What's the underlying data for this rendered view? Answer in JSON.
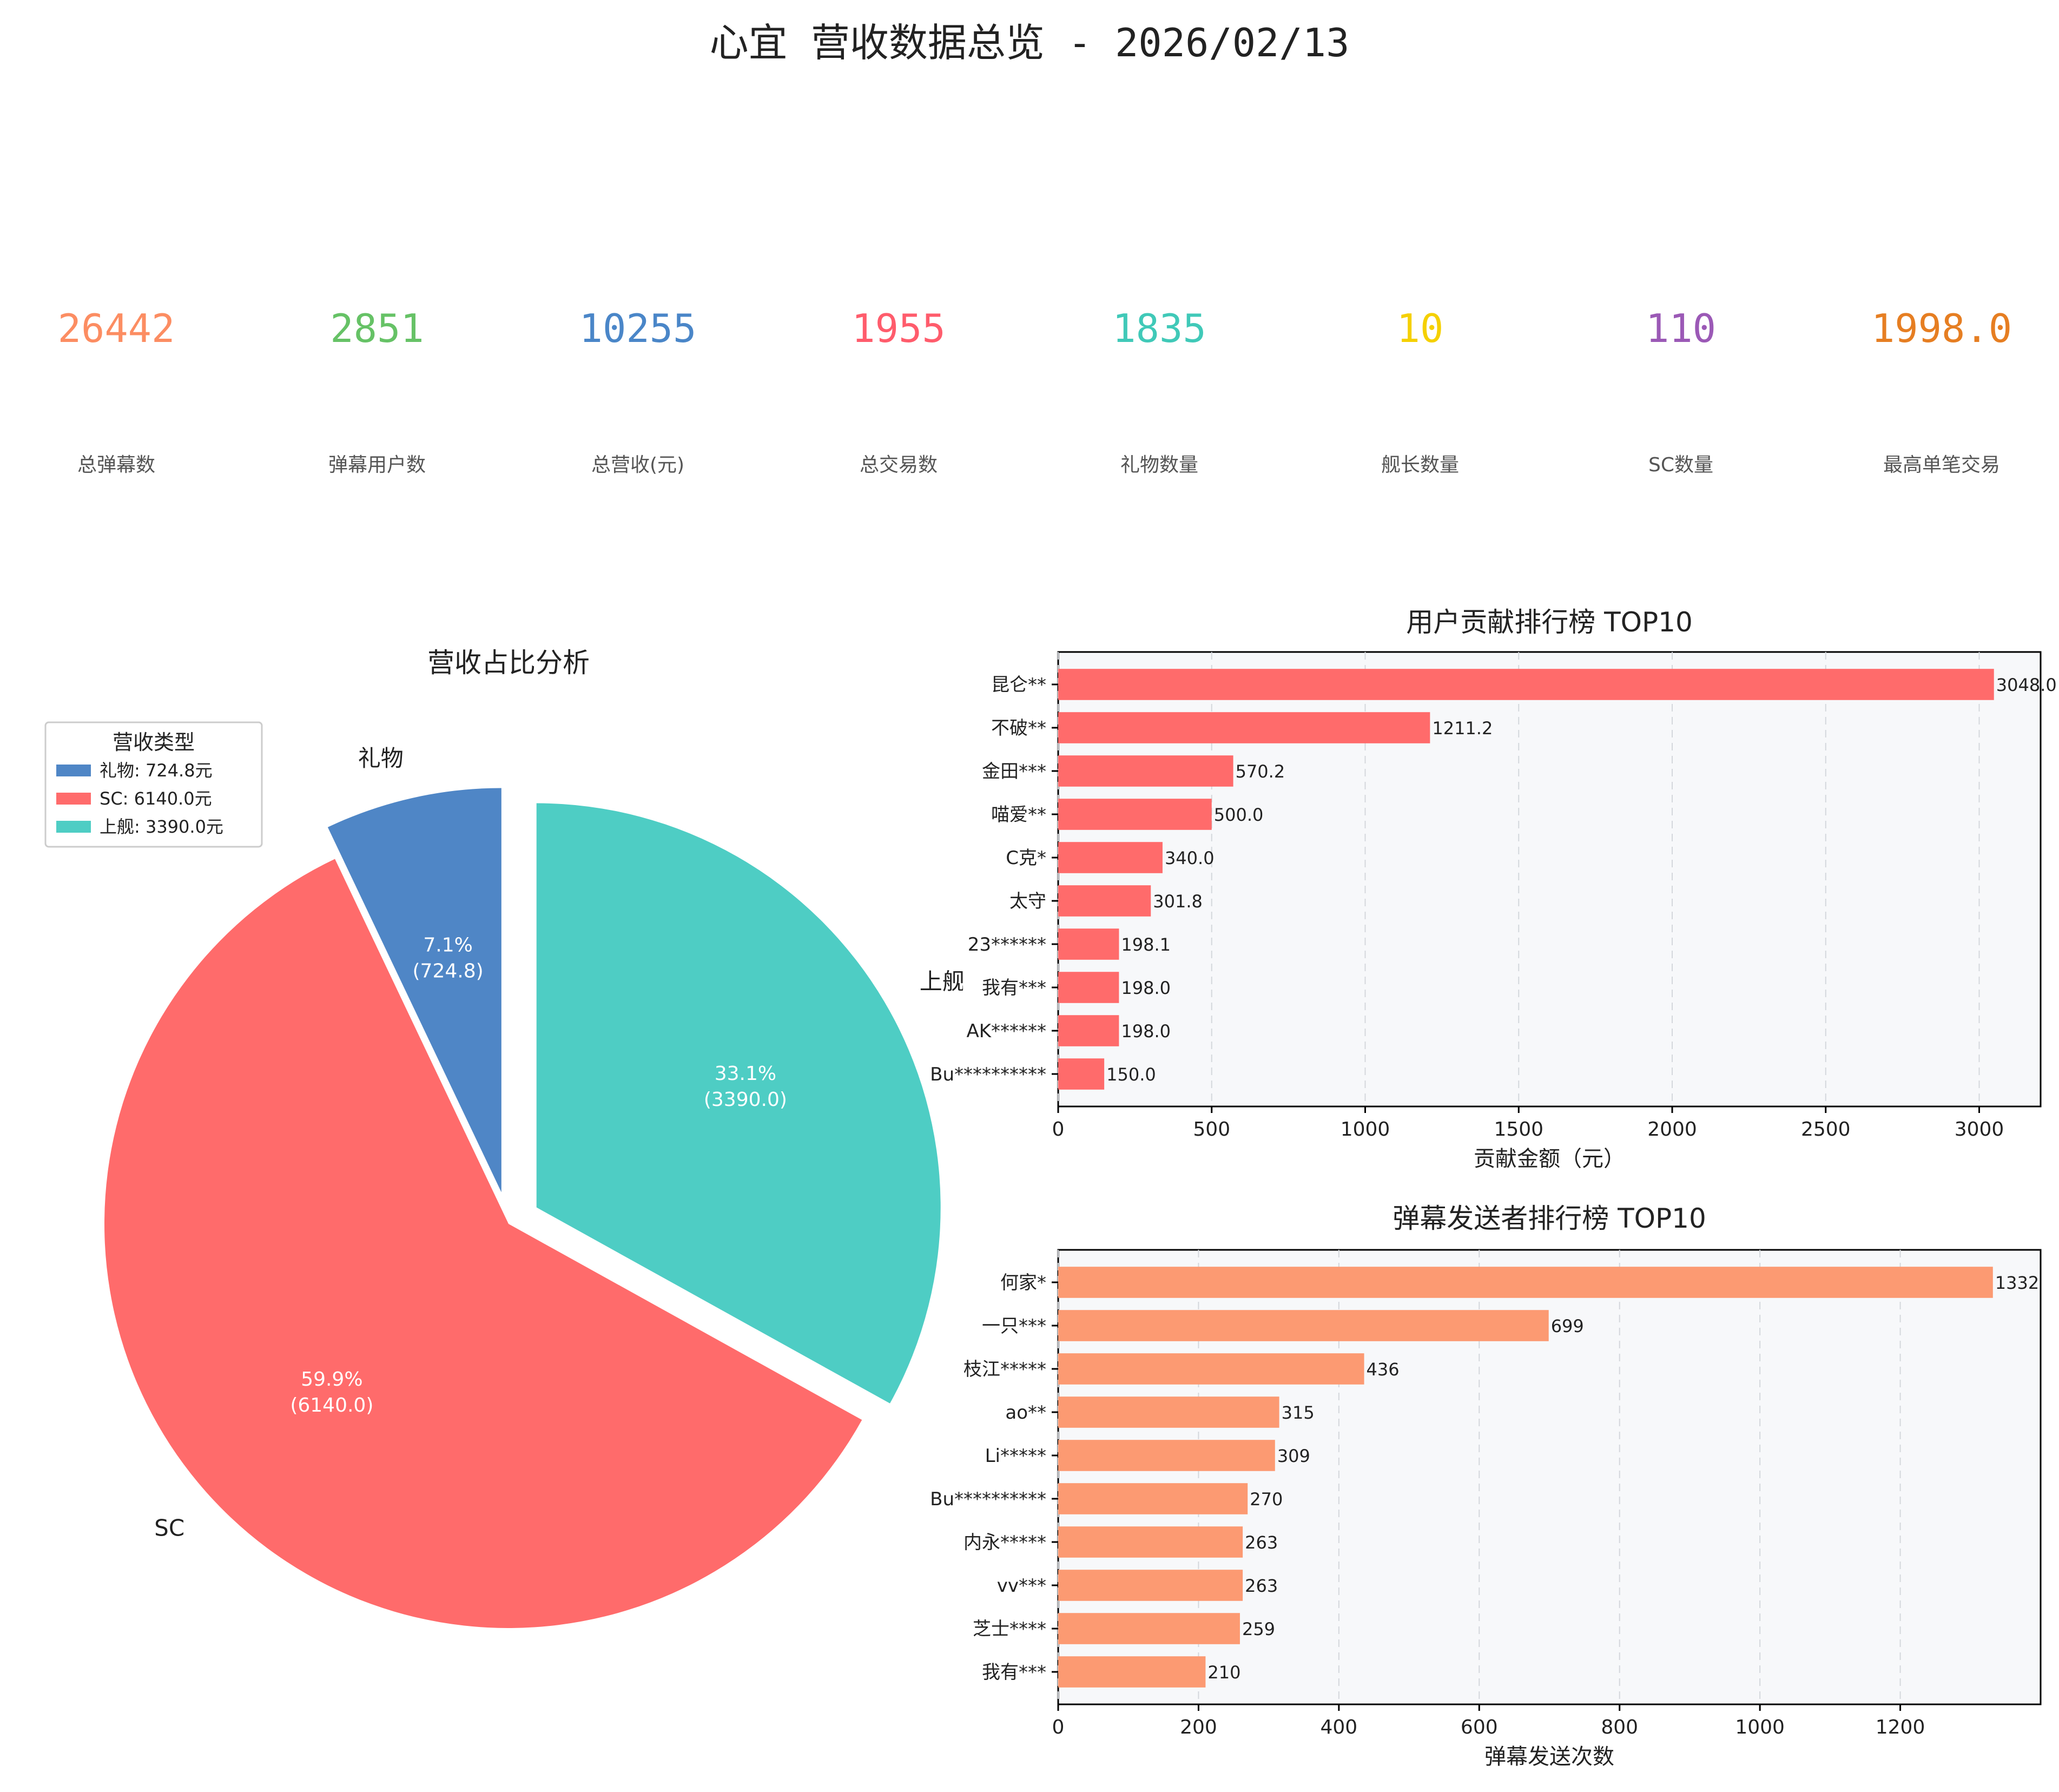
{
  "title": "心宜 营收数据总览 - 2026/02/13",
  "kpis": [
    {
      "value": "26442",
      "label": "总弹幕数",
      "color": "#fc8d62"
    },
    {
      "value": "2851",
      "label": "弹幕用户数",
      "color": "#66c266"
    },
    {
      "value": "10255",
      "label": "总营收(元)",
      "color": "#4a86c8"
    },
    {
      "value": "1955",
      "label": "总交易数",
      "color": "#ff5c6c"
    },
    {
      "value": "1835",
      "label": "礼物数量",
      "color": "#40c9b8"
    },
    {
      "value": "10",
      "label": "舰长数量",
      "color": "#f5d000"
    },
    {
      "value": "110",
      "label": "SC数量",
      "color": "#9b59b6"
    },
    {
      "value": "1998.0",
      "label": "最高单笔交易",
      "color": "#e67e22"
    }
  ],
  "chart_data": [
    {
      "type": "pie",
      "title": "营收占比分析",
      "legend_title": "营收类型",
      "legend_placement": "top-left",
      "slices": [
        {
          "label": "礼物",
          "value": 724.8,
          "percent": "7.1%",
          "value_label": "(724.8)",
          "legend": "礼物: 724.8元",
          "color": "#4f86c6",
          "explode": true
        },
        {
          "label": "SC",
          "value": 6140.0,
          "percent": "59.9%",
          "value_label": "(6140.0)",
          "legend": "SC: 6140.0元",
          "color": "#ff6b6b",
          "explode": false
        },
        {
          "label": "上舰",
          "value": 3390.0,
          "percent": "33.1%",
          "value_label": "(3390.0)",
          "legend": "上舰: 3390.0元",
          "color": "#4ecdc4",
          "explode": true
        }
      ]
    },
    {
      "type": "bar",
      "orientation": "horizontal",
      "title": "用户贡献排行榜 TOP10",
      "xlabel": "贡献金额（元）",
      "xlim": [
        0,
        3200
      ],
      "xticks": [
        "0",
        "500",
        "1000",
        "1500",
        "2000",
        "2500",
        "3000"
      ],
      "color": "#ff6b6b",
      "grid": true,
      "categories": [
        "昆仑**",
        "不破**",
        "金田***",
        "喵爱**",
        "C克*",
        "太守",
        "23******",
        "我有***",
        "AK******",
        "Bu**********"
      ],
      "values": [
        3048.0,
        1211.2,
        570.2,
        500.0,
        340.0,
        301.8,
        198.1,
        198.0,
        198.0,
        150.0
      ],
      "labels": [
        "3048.0",
        "1211.2",
        "570.2",
        "500.0",
        "340.0",
        "301.8",
        "198.1",
        "198.0",
        "198.0",
        "150.0"
      ]
    },
    {
      "type": "bar",
      "orientation": "horizontal",
      "title": "弹幕发送者排行榜 TOP10",
      "xlabel": "弹幕发送次数",
      "xlim": [
        0,
        1400
      ],
      "xticks": [
        "0",
        "200",
        "400",
        "600",
        "800",
        "1000",
        "1200"
      ],
      "color": "#fc9a72",
      "grid": true,
      "categories": [
        "何家*",
        "一只***",
        "枝江*****",
        "ao**",
        "Li*****",
        "Bu**********",
        "内永*****",
        "vv***",
        "芝士****",
        "我有***"
      ],
      "values": [
        1332,
        699,
        436,
        315,
        309,
        270,
        263,
        263,
        259,
        210
      ],
      "labels": [
        "1332",
        "699",
        "436",
        "315",
        "309",
        "270",
        "263",
        "263",
        "259",
        "210"
      ]
    }
  ]
}
